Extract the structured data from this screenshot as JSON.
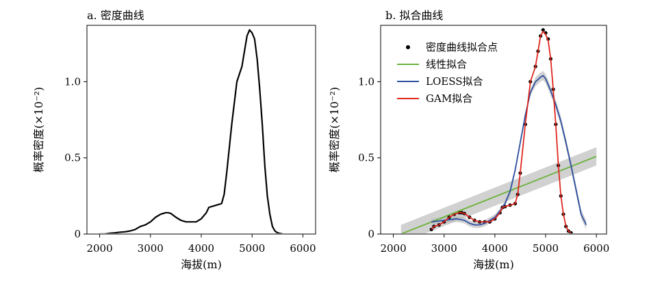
{
  "chart_data": [
    {
      "type": "line",
      "title": "a. 密度曲线",
      "xlabel": "海拔(m)",
      "ylabel": "概率密度(×10⁻²)",
      "xlim": [
        1750,
        6250
      ],
      "ylim": [
        0,
        1.37
      ],
      "xticks": [
        2000,
        3000,
        4000,
        5000,
        6000
      ],
      "yticks": [
        0,
        0.5,
        1.0
      ],
      "ytick_labels": [
        "0",
        "0.5",
        "1.0"
      ],
      "series": [
        {
          "color": "#000000",
          "x": [
            2000,
            2100,
            2200,
            2300,
            2400,
            2500,
            2600,
            2700,
            2800,
            2900,
            3000,
            3100,
            3200,
            3300,
            3350,
            3400,
            3500,
            3600,
            3700,
            3800,
            3900,
            4000,
            4100,
            4150,
            4200,
            4300,
            4400,
            4450,
            4500,
            4600,
            4700,
            4800,
            4850,
            4900,
            4950,
            5000,
            5050,
            5100,
            5150,
            5200,
            5250,
            5300,
            5350,
            5400,
            5450,
            5500,
            5600
          ],
          "y": [
            0.0,
            0.0,
            0.005,
            0.008,
            0.012,
            0.015,
            0.02,
            0.03,
            0.05,
            0.06,
            0.08,
            0.11,
            0.13,
            0.14,
            0.14,
            0.135,
            0.11,
            0.09,
            0.08,
            0.08,
            0.08,
            0.1,
            0.14,
            0.175,
            0.18,
            0.19,
            0.2,
            0.26,
            0.4,
            0.72,
            1.0,
            1.1,
            1.2,
            1.3,
            1.34,
            1.32,
            1.28,
            1.15,
            0.95,
            0.72,
            0.45,
            0.25,
            0.13,
            0.05,
            0.02,
            0.008,
            0.0
          ]
        }
      ]
    },
    {
      "type": "scatter",
      "title": "b. 拟合曲线",
      "xlabel": "海拔(m)",
      "ylabel": "概率密度(×10⁻²)",
      "xlim": [
        1750,
        6200
      ],
      "ylim": [
        0,
        1.37
      ],
      "xticks": [
        2000,
        3000,
        4000,
        5000,
        6000
      ],
      "xtick_labels": [
        "2000",
        "3000",
        "4000",
        "5000",
        "6000"
      ],
      "yticks": [
        0,
        0.5,
        1.0
      ],
      "ytick_labels": [
        "0",
        "0.5",
        "1.0"
      ],
      "legend_position": "top-left",
      "series": [
        {
          "name": "密度曲线拟合点",
          "type": "scatter",
          "color": "#000000",
          "x": [
            2750,
            2800,
            2900,
            3000,
            3100,
            3200,
            3300,
            3350,
            3400,
            3500,
            3600,
            3700,
            3800,
            3900,
            4000,
            4100,
            4150,
            4200,
            4300,
            4400,
            4450,
            4500,
            4600,
            4700,
            4800,
            4850,
            4900,
            4950,
            5000,
            5050,
            5100,
            5150,
            5200,
            5250,
            5300,
            5350,
            5400,
            5450,
            5500
          ],
          "y": [
            0.03,
            0.05,
            0.06,
            0.08,
            0.11,
            0.13,
            0.14,
            0.14,
            0.135,
            0.11,
            0.09,
            0.08,
            0.08,
            0.08,
            0.1,
            0.14,
            0.175,
            0.18,
            0.19,
            0.2,
            0.26,
            0.4,
            0.72,
            1.0,
            1.1,
            1.2,
            1.3,
            1.34,
            1.32,
            1.28,
            1.15,
            0.95,
            0.72,
            0.45,
            0.25,
            0.13,
            0.05,
            0.02,
            0.008
          ]
        },
        {
          "name": "线性拟合",
          "type": "line",
          "color": "#6ab23b",
          "x": [
            2150,
            6000
          ],
          "y": [
            0.0,
            0.51
          ],
          "band_upper": [
            0.06,
            0.57
          ],
          "band_lower": [
            -0.06,
            0.45
          ]
        },
        {
          "name": "LOESS拟合",
          "type": "line",
          "color": "#2c4ea0",
          "x": [
            2750,
            3000,
            3250,
            3400,
            3500,
            3600,
            3700,
            3800,
            3900,
            4000,
            4100,
            4200,
            4300,
            4400,
            4500,
            4600,
            4700,
            4800,
            4900,
            4950,
            5000,
            5100,
            5200,
            5300,
            5400,
            5500,
            5600,
            5700,
            5800
          ],
          "y": [
            0.08,
            0.09,
            0.1,
            0.09,
            0.07,
            0.06,
            0.06,
            0.07,
            0.09,
            0.11,
            0.15,
            0.2,
            0.28,
            0.42,
            0.6,
            0.78,
            0.93,
            1.0,
            1.03,
            1.04,
            1.02,
            0.94,
            0.85,
            0.74,
            0.6,
            0.45,
            0.29,
            0.13,
            0.06
          ],
          "band_upper": [
            0.1,
            0.11,
            0.12,
            0.11,
            0.09,
            0.08,
            0.08,
            0.09,
            0.11,
            0.13,
            0.17,
            0.22,
            0.3,
            0.44,
            0.62,
            0.8,
            0.95,
            1.03,
            1.06,
            1.07,
            1.05,
            0.97,
            0.88,
            0.77,
            0.63,
            0.48,
            0.32,
            0.16,
            0.09
          ],
          "band_lower": [
            0.06,
            0.07,
            0.08,
            0.07,
            0.05,
            0.04,
            0.04,
            0.05,
            0.07,
            0.09,
            0.13,
            0.18,
            0.26,
            0.4,
            0.58,
            0.76,
            0.91,
            0.97,
            1.0,
            1.01,
            0.99,
            0.91,
            0.82,
            0.71,
            0.57,
            0.42,
            0.26,
            0.1,
            0.03
          ]
        },
        {
          "name": "GAM拟合",
          "type": "line",
          "color": "#e0261e",
          "x": [
            2750,
            2800,
            2900,
            3000,
            3100,
            3200,
            3300,
            3350,
            3400,
            3500,
            3600,
            3700,
            3800,
            3900,
            4000,
            4100,
            4150,
            4200,
            4300,
            4400,
            4450,
            4500,
            4600,
            4700,
            4800,
            4850,
            4900,
            4950,
            5000,
            5050,
            5100,
            5150,
            5200,
            5250,
            5300,
            5350,
            5400,
            5450,
            5500
          ],
          "y": [
            0.03,
            0.05,
            0.06,
            0.08,
            0.11,
            0.13,
            0.14,
            0.14,
            0.135,
            0.11,
            0.09,
            0.08,
            0.08,
            0.08,
            0.1,
            0.14,
            0.175,
            0.18,
            0.19,
            0.2,
            0.26,
            0.4,
            0.72,
            1.0,
            1.1,
            1.2,
            1.3,
            1.33,
            1.31,
            1.27,
            1.15,
            0.95,
            0.72,
            0.45,
            0.25,
            0.13,
            0.05,
            0.02,
            0.008
          ]
        }
      ]
    }
  ]
}
